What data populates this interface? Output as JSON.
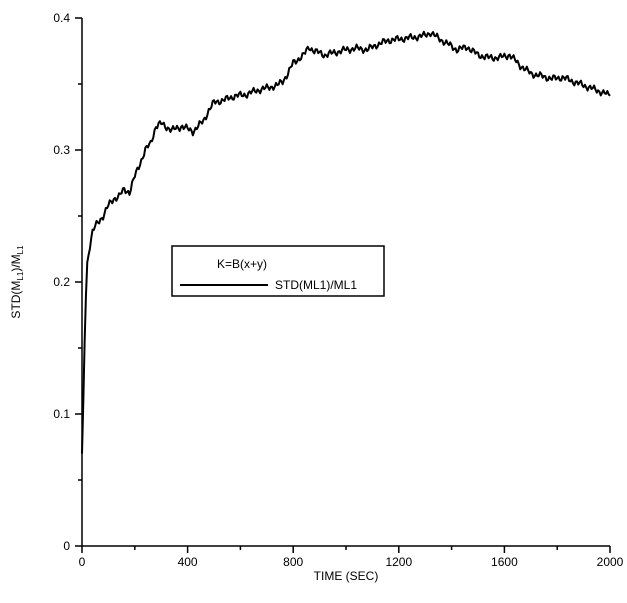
{
  "chart_data": {
    "type": "line",
    "xlabel": "TIME (SEC)",
    "ylabel": {
      "prefix": "STD(M",
      "sub1": "L1",
      "mid": ")/M",
      "sub2": "L1"
    },
    "xlim": [
      0,
      2000
    ],
    "ylim": [
      0,
      0.4
    ],
    "x_ticks": [
      0,
      400,
      800,
      1200,
      1600,
      2000
    ],
    "x_minor_step": 200,
    "y_ticks": [
      0,
      0.1,
      0.2,
      0.3,
      0.4
    ],
    "y_minor_step": 0.05,
    "x_tick_labels": [
      "0",
      "400",
      "800",
      "1200",
      "1600",
      "2000"
    ],
    "y_tick_labels": [
      "0",
      "0.1",
      "0.2",
      "0.3",
      "0.4"
    ],
    "grid": false,
    "legend": {
      "placement": "center-left",
      "title": "K=B(x+y)",
      "entries": [
        "STD(ML1)/ML1"
      ]
    },
    "series": [
      {
        "name": "STD(ML1)/ML1",
        "color": "#000000",
        "x": [
          0,
          5,
          10,
          15,
          20,
          30,
          40,
          50,
          60,
          80,
          100,
          120,
          140,
          160,
          180,
          200,
          220,
          240,
          260,
          280,
          300,
          340,
          380,
          420,
          440,
          460,
          480,
          500,
          540,
          580,
          620,
          660,
          700,
          740,
          760,
          780,
          800,
          840,
          860,
          880,
          920,
          960,
          1000,
          1040,
          1080,
          1120,
          1160,
          1200,
          1240,
          1280,
          1300,
          1320,
          1340,
          1380,
          1420,
          1460,
          1500,
          1540,
          1580,
          1620,
          1660,
          1700,
          1740,
          1780,
          1820,
          1860,
          1900,
          1940,
          1980,
          2000
        ],
        "values": [
          0.07,
          0.11,
          0.155,
          0.19,
          0.215,
          0.228,
          0.238,
          0.242,
          0.245,
          0.25,
          0.258,
          0.263,
          0.265,
          0.27,
          0.268,
          0.28,
          0.29,
          0.3,
          0.305,
          0.318,
          0.32,
          0.315,
          0.318,
          0.314,
          0.318,
          0.322,
          0.33,
          0.336,
          0.338,
          0.341,
          0.342,
          0.345,
          0.347,
          0.349,
          0.352,
          0.358,
          0.366,
          0.372,
          0.378,
          0.375,
          0.372,
          0.374,
          0.376,
          0.377,
          0.376,
          0.38,
          0.383,
          0.384,
          0.385,
          0.386,
          0.387,
          0.389,
          0.386,
          0.381,
          0.376,
          0.378,
          0.372,
          0.37,
          0.37,
          0.372,
          0.364,
          0.358,
          0.356,
          0.354,
          0.355,
          0.352,
          0.349,
          0.346,
          0.343,
          0.341
        ]
      }
    ]
  }
}
